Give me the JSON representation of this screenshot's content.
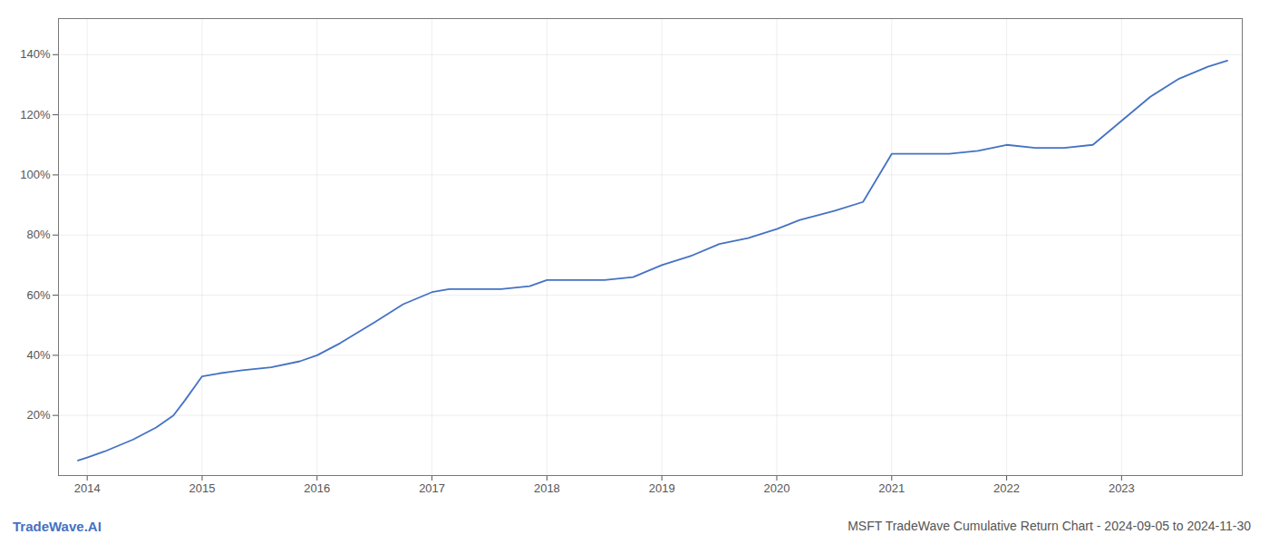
{
  "chart_data": {
    "type": "line",
    "title": "MSFT TradeWave Cumulative Return Chart - 2024-09-05 to 2024-11-30",
    "annotations": [
      "TradeWave.AI"
    ],
    "x": [
      2013.92,
      2014.0,
      2014.15,
      2014.4,
      2014.6,
      2014.75,
      2014.85,
      2015.0,
      2015.15,
      2015.35,
      2015.6,
      2015.85,
      2016.0,
      2016.2,
      2016.5,
      2016.75,
      2017.0,
      2017.15,
      2017.35,
      2017.6,
      2017.85,
      2018.0,
      2018.25,
      2018.5,
      2018.75,
      2019.0,
      2019.25,
      2019.5,
      2019.75,
      2020.0,
      2020.2,
      2020.5,
      2020.75,
      2021.0,
      2021.25,
      2021.5,
      2021.75,
      2022.0,
      2022.25,
      2022.5,
      2022.75,
      2023.0,
      2023.25,
      2023.5,
      2023.75,
      2023.92
    ],
    "values": [
      5,
      6,
      8,
      12,
      16,
      20,
      25,
      33,
      34,
      35,
      36,
      38,
      40,
      44,
      51,
      57,
      61,
      62,
      62,
      62,
      63,
      65,
      65,
      65,
      66,
      70,
      73,
      77,
      79,
      82,
      85,
      88,
      91,
      107,
      107,
      107,
      108,
      110,
      109,
      109,
      110,
      118,
      126,
      132,
      136,
      138
    ],
    "color": "#4472c4",
    "xlim": [
      2013.75,
      2024.05
    ],
    "xticks": [
      2014,
      2015,
      2016,
      2017,
      2018,
      2019,
      2020,
      2021,
      2022,
      2023
    ],
    "ylim": [
      0,
      152
    ],
    "yticks": [
      {
        "value": 20,
        "label": "20%"
      },
      {
        "value": 40,
        "label": "40%"
      },
      {
        "value": 60,
        "label": "60%"
      },
      {
        "value": 80,
        "label": "80%"
      },
      {
        "value": 100,
        "label": "100%"
      },
      {
        "value": 120,
        "label": "120%"
      },
      {
        "value": 140,
        "label": "140%"
      }
    ],
    "grid": true
  }
}
